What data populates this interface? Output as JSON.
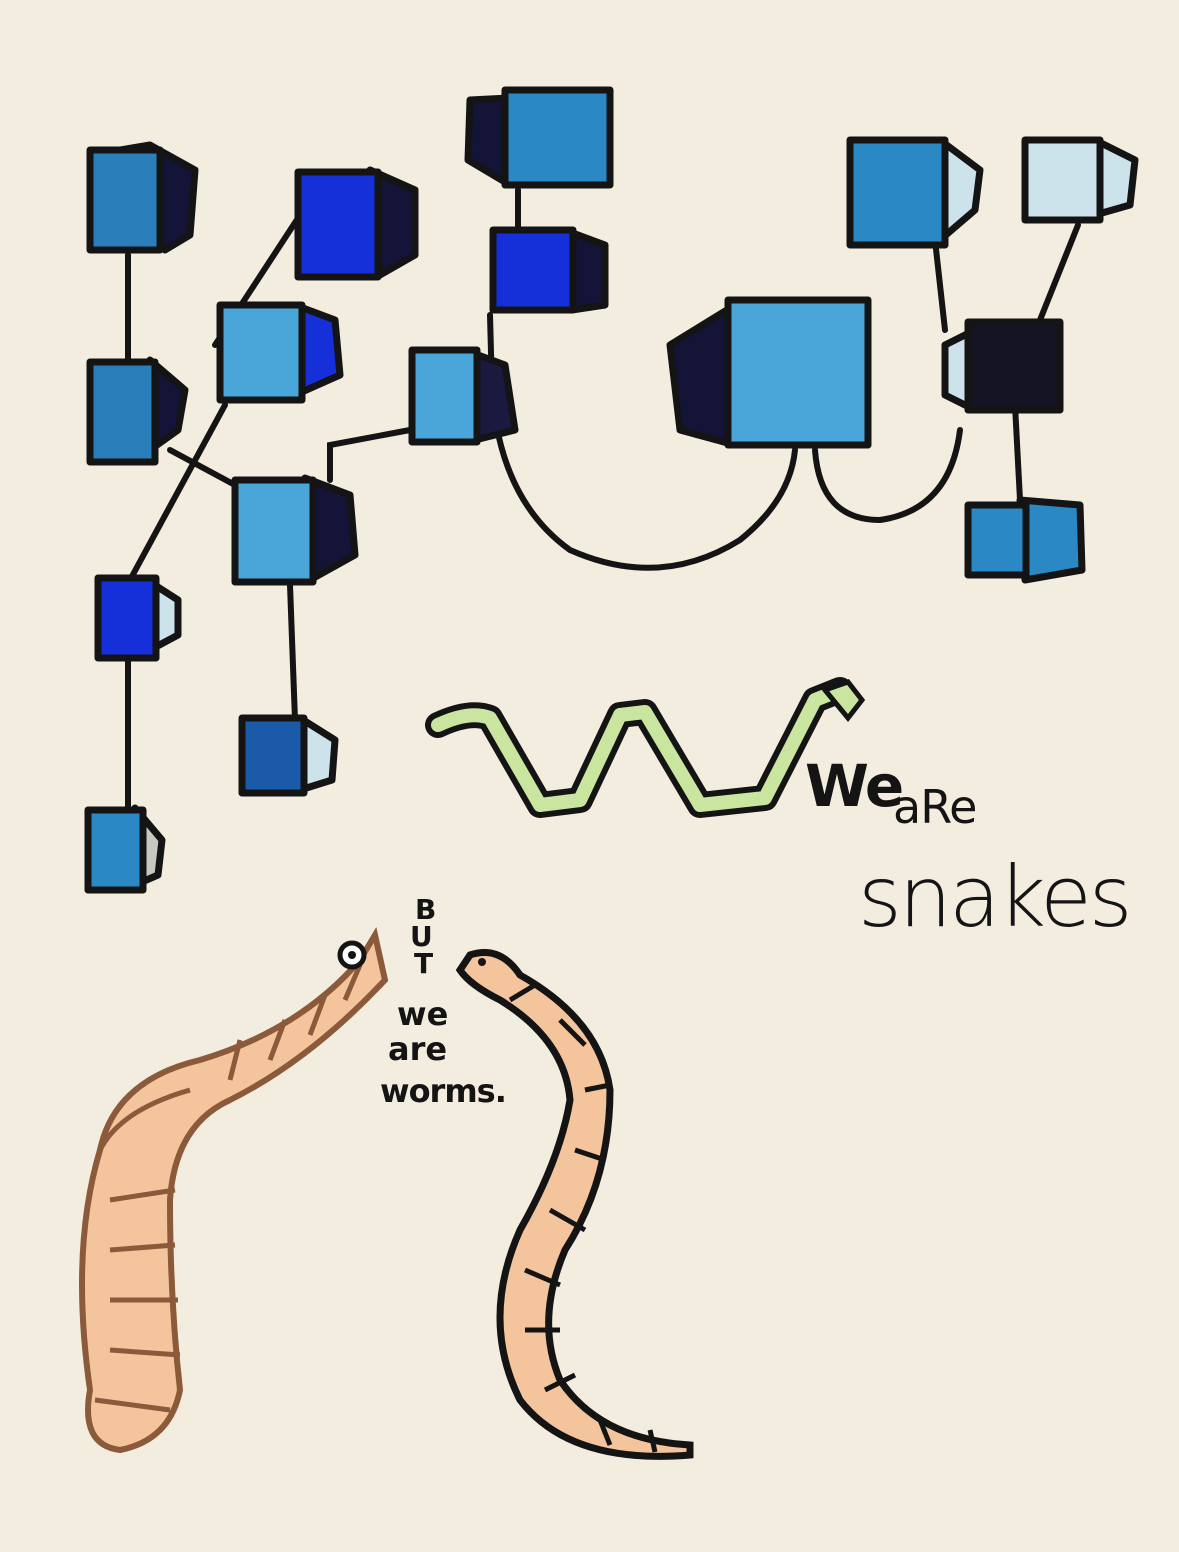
{
  "artwork": {
    "caption_we": "We",
    "caption_are": "aRe",
    "caption_snakes": "snakes",
    "caption_but": [
      "B",
      "U",
      "T"
    ],
    "caption_we_lower": "we",
    "caption_are_lower": "are",
    "caption_worms": "worms."
  },
  "colors": {
    "paper": "#f3ede0",
    "ink": "#141414",
    "blue_mid": "#2a88c4",
    "blue_light": "#4aa6d8",
    "blue_royal": "#1530d8",
    "blue_pale": "#cde3ec",
    "snake_green": "#c9e5a0",
    "worm_peach": "#f4c59c",
    "worm_brown": "#8a5a3a"
  }
}
